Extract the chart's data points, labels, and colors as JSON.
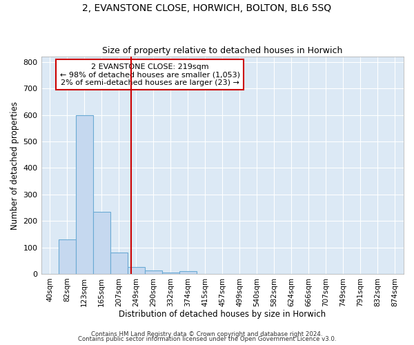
{
  "title": "2, EVANSTONE CLOSE, HORWICH, BOLTON, BL6 5SQ",
  "subtitle": "Size of property relative to detached houses in Horwich",
  "xlabel": "Distribution of detached houses by size in Horwich",
  "ylabel": "Number of detached properties",
  "bar_labels": [
    "40sqm",
    "82sqm",
    "123sqm",
    "165sqm",
    "207sqm",
    "249sqm",
    "290sqm",
    "332sqm",
    "374sqm",
    "415sqm",
    "457sqm",
    "499sqm",
    "540sqm",
    "582sqm",
    "624sqm",
    "666sqm",
    "707sqm",
    "749sqm",
    "791sqm",
    "832sqm",
    "874sqm"
  ],
  "bar_values": [
    0,
    130,
    600,
    235,
    80,
    25,
    12,
    5,
    10,
    0,
    0,
    0,
    0,
    0,
    0,
    0,
    0,
    0,
    0,
    0,
    0
  ],
  "bar_color": "#c5d8ef",
  "bar_edge_color": "#6aaad4",
  "red_line_x": 4.7,
  "red_line_color": "#cc0000",
  "annotation_text": "2 EVANSTONE CLOSE: 219sqm\n← 98% of detached houses are smaller (1,053)\n2% of semi-detached houses are larger (23) →",
  "annotation_box_color": "#ffffff",
  "annotation_box_edge": "#cc0000",
  "ylim": [
    0,
    820
  ],
  "yticks": [
    0,
    100,
    200,
    300,
    400,
    500,
    600,
    700,
    800
  ],
  "bg_color": "#dce9f5",
  "grid_color": "#ffffff",
  "footer1": "Contains HM Land Registry data © Crown copyright and database right 2024.",
  "footer2": "Contains public sector information licensed under the Open Government Licence v3.0."
}
